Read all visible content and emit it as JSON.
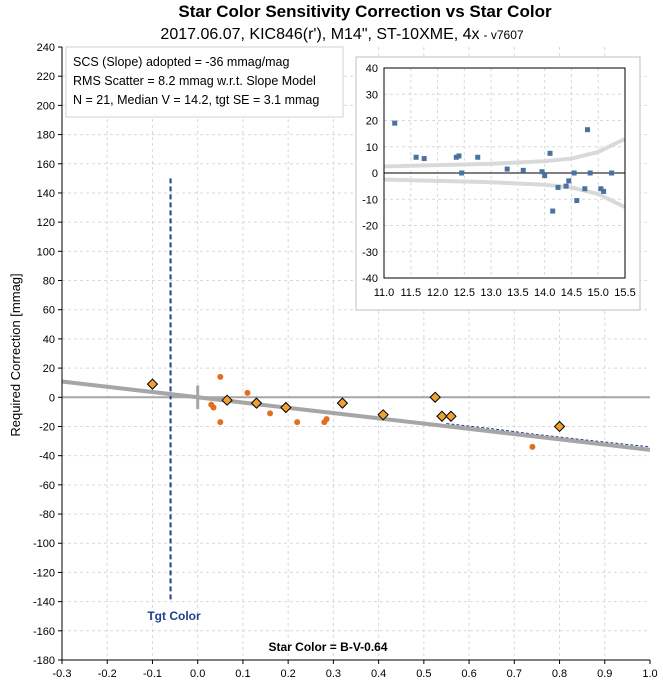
{
  "chart_data": [
    {
      "type": "scatter",
      "title": "Star Color Sensitivity Correction vs Star Color",
      "subtitle": "2017.06.07, KIC846(r'), M14\", ST-10XME, 4x",
      "version": "- v7607",
      "xlabel": "Star Color = B-V-0.64",
      "ylabel": "Required Correction [mmag]",
      "xlim": [
        -0.3,
        1.0
      ],
      "ylim": [
        -180,
        240
      ],
      "x_ticks": [
        "-0.3",
        "-0.2",
        "-0.1",
        "0.0",
        "0.1",
        "0.2",
        "0.3",
        "0.4",
        "0.5",
        "0.6",
        "0.7",
        "0.8",
        "0.9",
        "1.0"
      ],
      "y_ticks": [
        "240",
        "220",
        "200",
        "180",
        "160",
        "140",
        "120",
        "100",
        "80",
        "60",
        "40",
        "20",
        "0",
        "-20",
        "-40",
        "-60",
        "-80",
        "-100",
        "-120",
        "-140",
        "-160",
        "-180"
      ],
      "grid": true,
      "info_lines": [
        "SCS (Slope) adopted  =  -36 mmag/mag",
        "RMS Scatter = 8.2 mmag w.r.t. Slope Model",
        "N = 21,  Median V = 14.2, tgt SE = 3.1 mmag"
      ],
      "target_label": "Tgt Color",
      "target_color_x": -0.06,
      "slope_model": {
        "slope": -36,
        "x": [
          -0.3,
          1.0
        ],
        "color": "#a6a6a6"
      },
      "fit_curve": {
        "x": [
          0.55,
          0.65,
          0.75,
          0.85,
          1.0
        ],
        "y": [
          -18,
          -21.5,
          -25.5,
          -29,
          -34
        ],
        "color": "#1f3f8f"
      },
      "series": [
        {
          "marker": "diamond",
          "color": "#f0a030",
          "x": [
            -0.1,
            0.065,
            0.13,
            0.195,
            0.32,
            0.41,
            0.525,
            0.54,
            0.56,
            0.8
          ],
          "y": [
            9,
            -2,
            -4,
            -7,
            -4,
            -12,
            0,
            -13,
            -13,
            -20
          ]
        },
        {
          "marker": "dot",
          "color": "#e07020",
          "x": [
            0.03,
            0.035,
            0.05,
            0.05,
            0.11,
            0.16,
            0.22,
            0.28,
            0.285,
            0.74
          ],
          "y": [
            -5,
            -7,
            14,
            -17,
            3,
            -11,
            -17,
            -17,
            -15,
            -34
          ]
        }
      ]
    },
    {
      "type": "scatter",
      "xlim": [
        11.0,
        15.5
      ],
      "ylim": [
        -40,
        40
      ],
      "x_ticks": [
        "11.0",
        "11.5",
        "12.0",
        "12.5",
        "13.0",
        "13.5",
        "14.0",
        "14.5",
        "15.0",
        "15.5"
      ],
      "y_ticks": [
        "40",
        "30",
        "20",
        "10",
        "0",
        "-10",
        "-20",
        "-30",
        "-40"
      ],
      "grid": true,
      "envelope": {
        "x": [
          11.0,
          12.0,
          13.0,
          13.5,
          14.0,
          14.5,
          15.0,
          15.5
        ],
        "upper": [
          2.5,
          3,
          3.5,
          4,
          4.5,
          5.5,
          8,
          13
        ],
        "color": "#d9d9d9"
      },
      "series": [
        {
          "marker": "square",
          "color": "#4a72a0",
          "x": [
            11.2,
            11.6,
            11.75,
            12.35,
            12.4,
            12.45,
            12.75,
            13.3,
            13.6,
            13.95,
            14.0,
            14.1,
            14.15,
            14.25,
            14.4,
            14.45,
            14.55,
            14.6,
            14.75,
            14.8,
            14.85,
            15.05,
            15.1,
            15.25
          ],
          "y": [
            19,
            6,
            5.5,
            6,
            6.5,
            0,
            6,
            1.5,
            1,
            0.5,
            -1,
            7.5,
            -14.5,
            -5.5,
            -5,
            -3,
            0,
            -10.5,
            -6,
            16.5,
            0,
            -6,
            -7,
            0
          ]
        }
      ]
    }
  ]
}
